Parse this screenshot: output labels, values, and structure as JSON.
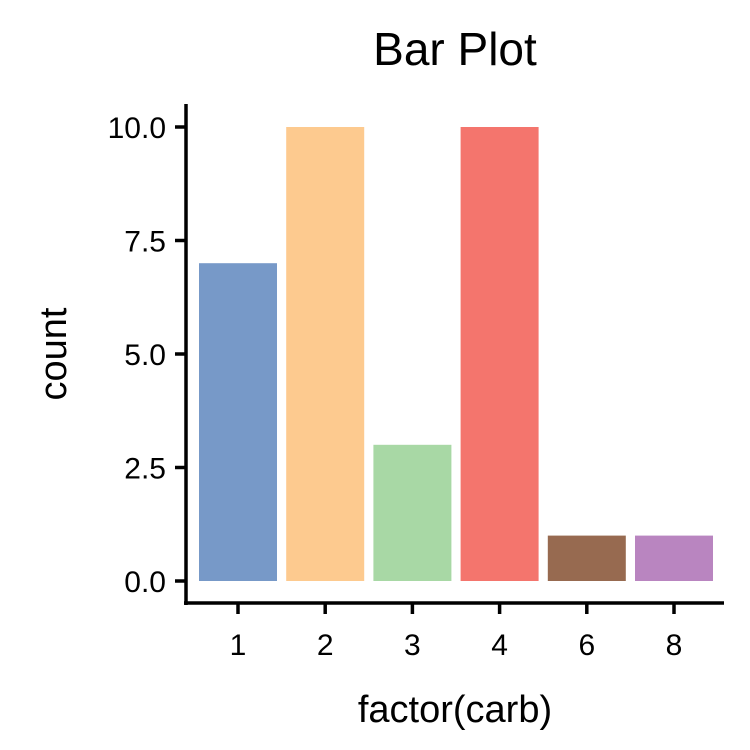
{
  "chart_data": {
    "type": "bar",
    "title": "Bar Plot",
    "xlabel": "factor(carb)",
    "ylabel": "count",
    "categories": [
      "1",
      "2",
      "3",
      "4",
      "6",
      "8"
    ],
    "values": [
      7,
      10,
      3,
      10,
      1,
      1
    ],
    "colors": [
      "#7799C8",
      "#FDCA8F",
      "#A8D8A5",
      "#F4756D",
      "#976A50",
      "#B985C0"
    ],
    "ylim": [
      0,
      10
    ],
    "yticks": [
      0,
      2.5,
      5,
      7.5,
      10
    ],
    "ytick_labels": [
      "0.0",
      "2.5",
      "5.0",
      "7.5",
      "10.0"
    ],
    "grid": false,
    "legend": "none"
  }
}
